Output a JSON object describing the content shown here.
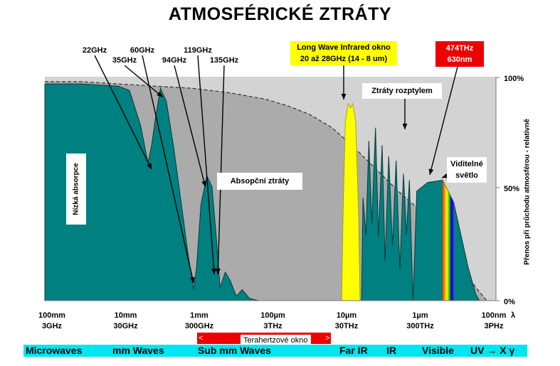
{
  "title": "ATMOSFÉRICKÉ ZTRÁTY",
  "chart_data": {
    "type": "area",
    "title": "ATMOSFÉRICKÉ ZTRÁTY",
    "x_scale": "log",
    "x_unit_label": "λ",
    "x_ticks": [
      {
        "wavelength": "100mm",
        "frequency": "3GHz"
      },
      {
        "wavelength": "10mm",
        "frequency": "30GHz"
      },
      {
        "wavelength": "1mm",
        "frequency": "300GHz"
      },
      {
        "wavelength": "100µm",
        "frequency": "3THz"
      },
      {
        "wavelength": "10µm",
        "frequency": "30THz"
      },
      {
        "wavelength": "1µm",
        "frequency": "300THz"
      },
      {
        "wavelength": "100nm",
        "frequency": "3PHz"
      }
    ],
    "y_label": "Přenos při průchodu atmosférou - relativně",
    "y_ticks": [
      "100%",
      "50%",
      "0%"
    ],
    "ylim": [
      0,
      100
    ],
    "grid": false,
    "series": [
      {
        "name": "",
        "role": "scattering_envelope",
        "color": "#d3d3d3",
        "fill": "#ababab",
        "x_decade": [
          0,
          0.5,
          1,
          1.5,
          2,
          2.5,
          3,
          3.3,
          3.6,
          3.9,
          4.2,
          4.5,
          4.8,
          5.1,
          5.4,
          5.7,
          5.85,
          6
        ],
        "y": [
          100,
          100,
          99,
          98,
          97,
          95,
          92,
          89,
          85,
          79,
          70,
          60,
          50,
          41,
          28,
          14,
          6,
          0
        ]
      },
      {
        "name": "",
        "role": "transmission",
        "color": "#008080",
        "points": [
          [
            0,
            99
          ],
          [
            0.5,
            99
          ],
          [
            1,
            98
          ],
          [
            1.15,
            96
          ],
          [
            1.3,
            80
          ],
          [
            1.4,
            63
          ],
          [
            1.45,
            71
          ],
          [
            1.5,
            83
          ],
          [
            1.57,
            97
          ],
          [
            1.65,
            91
          ],
          [
            1.75,
            70
          ],
          [
            1.85,
            45
          ],
          [
            1.95,
            20
          ],
          [
            2.02,
            5
          ],
          [
            2.06,
            15
          ],
          [
            2.12,
            44
          ],
          [
            2.2,
            57
          ],
          [
            2.27,
            52
          ],
          [
            2.33,
            28
          ],
          [
            2.38,
            6
          ],
          [
            2.45,
            13
          ],
          [
            2.52,
            9
          ],
          [
            2.6,
            2
          ],
          [
            2.68,
            5
          ],
          [
            2.78,
            1
          ],
          [
            2.9,
            0
          ],
          [
            4.05,
            0
          ],
          [
            4.3,
            0
          ],
          [
            4.32,
            47
          ],
          [
            4.36,
            30
          ],
          [
            4.4,
            73
          ],
          [
            4.44,
            35
          ],
          [
            4.49,
            79
          ],
          [
            4.53,
            29
          ],
          [
            4.58,
            71
          ],
          [
            4.62,
            18
          ],
          [
            4.67,
            66
          ],
          [
            4.72,
            25
          ],
          [
            4.77,
            64
          ],
          [
            4.82,
            14
          ],
          [
            4.87,
            58
          ],
          [
            4.91,
            30
          ],
          [
            4.95,
            55
          ],
          [
            5,
            0
          ],
          [
            5.05,
            50
          ],
          [
            5.2,
            54
          ],
          [
            5.4,
            55
          ],
          [
            5.55,
            45
          ],
          [
            5.65,
            30
          ],
          [
            5.75,
            15
          ],
          [
            5.85,
            3
          ],
          [
            5.9,
            0
          ]
        ]
      },
      {
        "name": "",
        "role": "window",
        "color": "#ffff00",
        "points": [
          [
            4.03,
            0
          ],
          [
            4.05,
            40
          ],
          [
            4.08,
            82
          ],
          [
            4.12,
            90
          ],
          [
            4.15,
            88
          ],
          [
            4.18,
            90
          ],
          [
            4.22,
            82
          ],
          [
            4.26,
            40
          ],
          [
            4.28,
            0
          ]
        ]
      },
      {
        "name": "",
        "role": "visible_spectrum",
        "x_range": [
          5.22,
          5.55
        ],
        "colors": [
          "#ff3300",
          "#ff9900",
          "#ffff00",
          "#33cc00",
          "#0000ff",
          "#6600cc"
        ]
      }
    ],
    "annotations": [
      {
        "text": "22GHz",
        "target_x_decade": 1.45
      },
      {
        "text": "35GHz",
        "target_x_decade": 1.6
      },
      {
        "text": "60GHz",
        "target_x_decade": 2.02
      },
      {
        "text": "94GHz",
        "target_x_decade": 2.18
      },
      {
        "text": "119GHz",
        "target_x_decade": 2.3
      },
      {
        "text": "135GHz",
        "target_x_decade": 2.35
      }
    ],
    "boxes": {
      "lwir_line1": "Long Wave Infrared okno",
      "lwir_line2": "20 až 28GHz (14 - 8 um)",
      "freq_line1": "474THz",
      "freq_line2": "630nm",
      "scattering": "Ztráty rozptylem",
      "absorption": "Absopční ztráty",
      "visible_line1": "Viditelné",
      "visible_line2": "světlo",
      "low_absorption": "Nízká absorpce"
    },
    "terahertz_window": "Terahertzové okno",
    "terahertz_arrows": [
      "<",
      ">"
    ]
  },
  "bands": [
    "Microwaves",
    "mm Waves",
    "Sub mm Waves",
    "Far IR",
    "IR",
    "Visible",
    "UV → X  γ"
  ],
  "colors": {
    "teal": "#008080",
    "light_gray": "#d3d3d3",
    "dark_gray": "#ababab",
    "yellow": "#ffff00",
    "red": "#ee0000",
    "cyan": "#00e5ee"
  }
}
